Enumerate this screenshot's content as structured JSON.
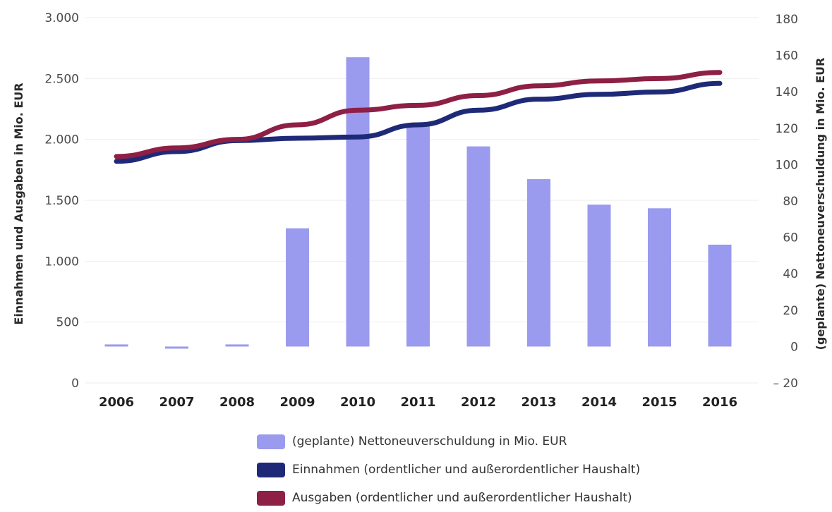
{
  "chart_data": {
    "type": "bar+line",
    "categories": [
      "2006",
      "2007",
      "2008",
      "2009",
      "2010",
      "2011",
      "2012",
      "2013",
      "2014",
      "2015",
      "2016"
    ],
    "left_axis": {
      "label": "Einnahmen und Ausgaben in Mio. EUR",
      "ylim": [
        0,
        3000
      ],
      "ticks": [
        0,
        500,
        1000,
        1500,
        2000,
        2500,
        3000
      ],
      "tick_labels": [
        "0",
        "500",
        "1.000",
        "1.500",
        "2.000",
        "2.500",
        "3.000"
      ]
    },
    "right_axis": {
      "label": "(geplante) Nettoneuverschuldung in Mio. EUR",
      "ylim": [
        -20,
        180
      ],
      "ticks": [
        -20,
        0,
        20,
        40,
        60,
        80,
        100,
        120,
        140,
        160,
        180
      ],
      "tick_labels": [
        "– 20",
        "0",
        "20",
        "40",
        "60",
        "80",
        "100",
        "120",
        "140",
        "160",
        "180"
      ]
    },
    "series": [
      {
        "name": "(geplante) Nettoneuverschuldung in Mio. EUR",
        "type": "bar",
        "axis": "right",
        "color": "#9a9aee",
        "color_planned": "#9999f0",
        "values": [
          1,
          -1,
          0,
          65,
          159,
          121,
          110,
          92,
          78,
          76,
          56
        ]
      },
      {
        "name": "Einnahmen (ordentlicher und außerordentlicher Haushalt)",
        "type": "line",
        "axis": "left",
        "color": "#1e2a78",
        "values": [
          1820,
          1900,
          1990,
          2010,
          2020,
          2120,
          2240,
          2330,
          2370,
          2390,
          2460
        ]
      },
      {
        "name": "Ausgaben (ordentlicher und außerordentlicher Haushalt)",
        "type": "line",
        "axis": "left",
        "color": "#8e1f45",
        "values": [
          1860,
          1930,
          2000,
          2120,
          2240,
          2280,
          2360,
          2440,
          2480,
          2500,
          2550
        ]
      }
    ],
    "grid": true,
    "legend_position": "bottom"
  }
}
